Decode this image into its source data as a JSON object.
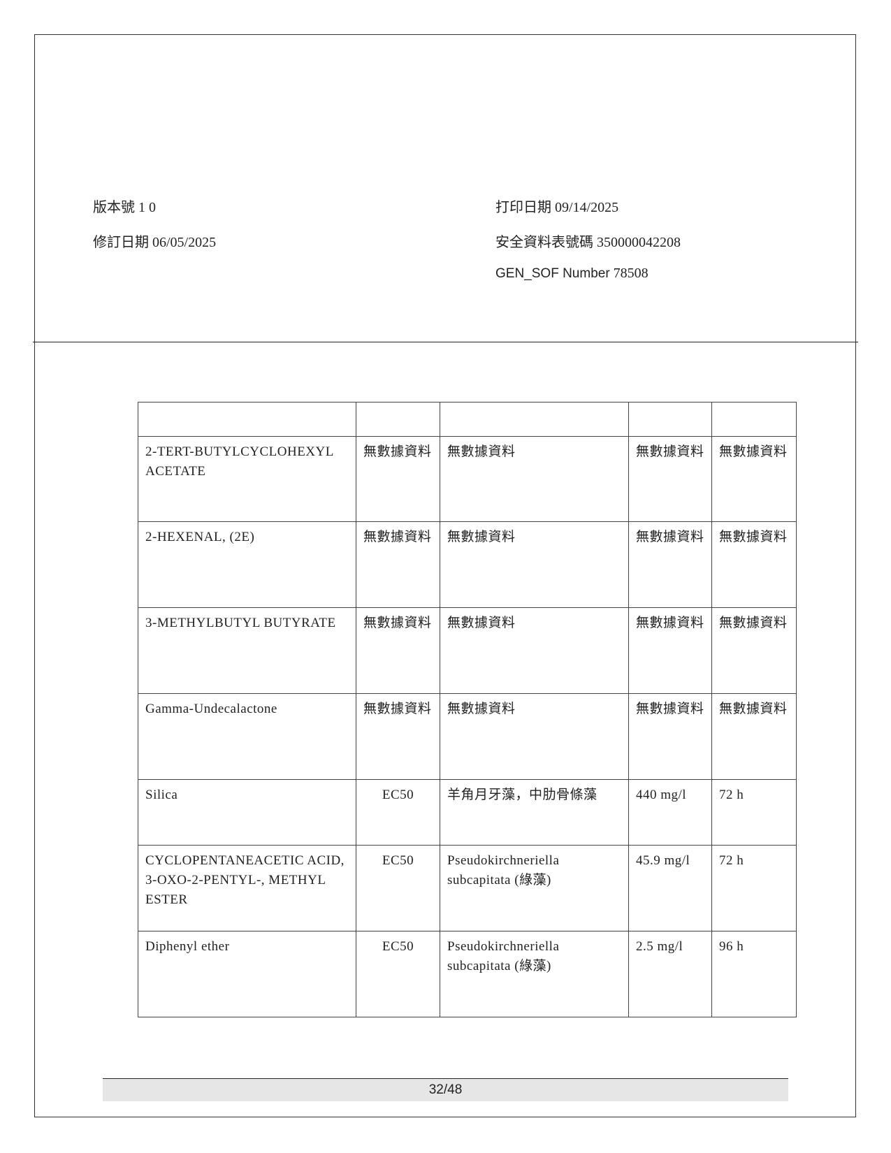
{
  "header": {
    "version": "版本號 1 0",
    "revision_date": "修訂日期 06/05/2025",
    "print_date": "打印日期 09/14/2025",
    "sds_number": "安全資料表號碼 350000042208",
    "gen_sof_label": "GEN_SOF Number",
    "gen_sof_value": "78508"
  },
  "table": {
    "header": [
      "",
      "",
      "",
      "",
      ""
    ],
    "rows": [
      [
        "2-TERT-BUTYLCYCLOHEXYL ACETATE",
        "無數據資料",
        "無數據資料",
        "無數據資料",
        "無數據資料"
      ],
      [
        "2-HEXENAL, (2E)",
        "無數據資料",
        "無數據資料",
        "無數據資料",
        "無數據資料"
      ],
      [
        "3-METHYLBUTYL BUTYRATE",
        "無數據資料",
        "無數據資料",
        "無數據資料",
        "無數據資料"
      ],
      [
        "Gamma-Undecalactone",
        "無數據資料",
        "無數據資料",
        "無數據資料",
        "無數據資料"
      ],
      [
        "Silica",
        "EC50",
        "羊角月牙藻，中肋骨條藻",
        "440 mg/l",
        "72 h"
      ],
      [
        "CYCLOPENTANEACETIC ACID, 3-OXO-2-PENTYL-, METHYL ESTER",
        "EC50",
        "Pseudokirchneriella subcapitata (綠藻)",
        "45.9 mg/l",
        "72 h"
      ],
      [
        "Diphenyl ether",
        "EC50",
        "Pseudokirchneriella subcapitata (綠藻)",
        "2.5 mg/l",
        "96 h"
      ]
    ]
  },
  "footer": {
    "page": "32/48"
  }
}
